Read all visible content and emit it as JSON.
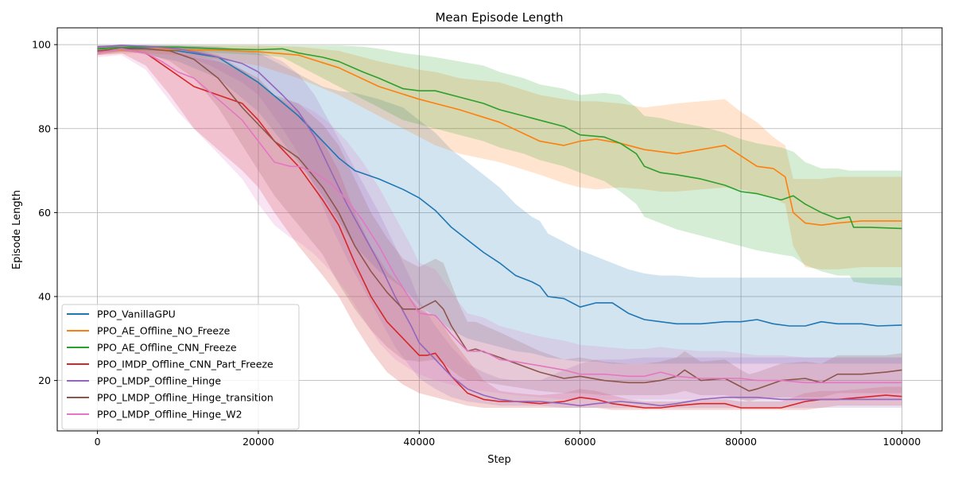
{
  "chart_data": {
    "type": "line",
    "title": "Mean Episode Length",
    "xlabel": "Step",
    "ylabel": "Episode Length",
    "xlim": [
      -5000,
      105000
    ],
    "ylim": [
      8,
      104
    ],
    "xticks": [
      0,
      20000,
      40000,
      60000,
      80000,
      100000
    ],
    "xtick_labels": [
      "0",
      "20000",
      "40000",
      "60000",
      "80000",
      "100000"
    ],
    "yticks": [
      20,
      40,
      60,
      80,
      100
    ],
    "ytick_labels": [
      "20",
      "40",
      "60",
      "80",
      "100"
    ],
    "grid": true,
    "legend_position": "lower-left",
    "series": [
      {
        "name": "PPO_VanillaGPU",
        "color": "#1f77b4",
        "x": [
          0,
          2500,
          5000,
          10000,
          15000,
          20000,
          25000,
          28000,
          30000,
          32000,
          35000,
          38000,
          40000,
          42000,
          44000,
          46000,
          48000,
          50000,
          52000,
          54000,
          55000,
          56000,
          58000,
          60000,
          62000,
          64000,
          66000,
          68000,
          70000,
          72000,
          75000,
          78000,
          80000,
          82000,
          84000,
          86000,
          88000,
          90000,
          92000,
          95000,
          97000,
          100000
        ],
        "y": [
          99,
          99.3,
          99.2,
          98.5,
          97,
          91,
          83,
          77,
          73,
          70,
          68,
          65.5,
          63.5,
          60.5,
          56.5,
          53.5,
          50.5,
          48,
          45,
          43.5,
          42.5,
          40,
          39.5,
          37.5,
          38.5,
          38.5,
          36,
          34.5,
          34,
          33.5,
          33.5,
          34,
          34,
          34.5,
          33.5,
          33,
          33,
          34,
          33.5,
          33.5,
          33,
          33.2
        ],
        "lower": [
          98,
          98.5,
          98,
          96,
          92,
          84,
          72,
          64,
          58,
          52,
          46,
          42,
          38,
          35,
          32,
          30,
          29,
          28,
          27,
          26.5,
          26,
          25.5,
          25,
          24.5,
          24.5,
          24,
          24,
          24,
          24,
          24,
          24,
          24,
          24,
          24,
          24,
          24,
          24,
          24,
          24,
          24,
          24,
          24
        ],
        "upper": [
          99.8,
          99.8,
          99.8,
          99.8,
          99.5,
          98,
          93,
          90,
          89,
          88.5,
          87,
          85,
          82,
          79,
          75,
          72,
          69,
          66,
          62,
          59,
          58,
          55,
          53,
          51,
          49.5,
          48,
          46.5,
          45.5,
          45,
          45,
          44.5,
          44.5,
          44.5,
          44.5,
          44.5,
          44.5,
          44.5,
          44.5,
          44.5,
          44.5,
          44.5,
          44.5
        ]
      },
      {
        "name": "PPO_AE_Offline_NO_Freeze",
        "color": "#ff7f0e",
        "x": [
          0,
          5000,
          10000,
          15000,
          20000,
          25000,
          30000,
          35000,
          40000,
          42000,
          45000,
          50000,
          55000,
          58000,
          60000,
          62000,
          65000,
          68000,
          70000,
          72000,
          75000,
          78000,
          80000,
          82000,
          84000,
          85500,
          86500,
          88000,
          90000,
          92000,
          95000,
          97000,
          100000
        ],
        "y": [
          98.5,
          99,
          98.8,
          98.7,
          98.3,
          97.5,
          94.5,
          90,
          87,
          86,
          84.5,
          81.5,
          77,
          76,
          77,
          77.5,
          76.5,
          75,
          74.5,
          74,
          75,
          76,
          73.5,
          71,
          70.5,
          68.5,
          60,
          57.5,
          57,
          57.5,
          58,
          58,
          58
        ],
        "lower": [
          97.5,
          98,
          97.5,
          96.5,
          95,
          92,
          88,
          83,
          78,
          76,
          74,
          72,
          69,
          67,
          66,
          65.5,
          66,
          65.5,
          65,
          65,
          65.5,
          66,
          65.5,
          64.5,
          63.5,
          62,
          52,
          47,
          46.5,
          46.5,
          47,
          47,
          47
        ],
        "upper": [
          99.5,
          99.8,
          99.8,
          99.8,
          99.8,
          99.5,
          98.5,
          96,
          94,
          93.5,
          92,
          91,
          88,
          87,
          86.5,
          86.5,
          86,
          85,
          85.5,
          86,
          86.5,
          87,
          84,
          81.5,
          78,
          76,
          68,
          68,
          68,
          68.5,
          68.5,
          68.5,
          68.5
        ]
      },
      {
        "name": "PPO_AE_Offline_CNN_Freeze",
        "color": "#2ca02c",
        "x": [
          0,
          5000,
          10000,
          15000,
          20000,
          23000,
          25000,
          28000,
          30000,
          33000,
          35000,
          38000,
          40000,
          42000,
          45000,
          48000,
          50000,
          53000,
          55000,
          58000,
          60000,
          63000,
          65000,
          67000,
          68000,
          70000,
          72000,
          75000,
          78000,
          80000,
          82000,
          85000,
          86500,
          88000,
          90000,
          92000,
          93500,
          94000,
          96000,
          100000
        ],
        "y": [
          99,
          99.5,
          99.4,
          99,
          98.8,
          99,
          98,
          97,
          96,
          93.5,
          92,
          89.5,
          89,
          89,
          87.5,
          86,
          84.5,
          83,
          82,
          80.5,
          78.5,
          78,
          76.5,
          74,
          71,
          69.5,
          69,
          68,
          66.5,
          65,
          64.5,
          63,
          64,
          62,
          60,
          58.5,
          59,
          56.5,
          56.5,
          56.2
        ],
        "lower": [
          98,
          98.5,
          98.5,
          98,
          97.5,
          97,
          95,
          92,
          90,
          87,
          85,
          82,
          81,
          80,
          78.5,
          77,
          75.5,
          74,
          72.5,
          71,
          69.5,
          67.5,
          65,
          62,
          59,
          57.5,
          56,
          54.5,
          53,
          52,
          51,
          50,
          49.5,
          47.5,
          46,
          45,
          45,
          43.5,
          43,
          42.5
        ],
        "upper": [
          99.8,
          99.8,
          99.8,
          99.8,
          99.8,
          99.8,
          99.8,
          99.8,
          99.8,
          99.5,
          99,
          98,
          97.5,
          97,
          96,
          95,
          93.5,
          92,
          90.5,
          89.5,
          88,
          88.5,
          88,
          85,
          83,
          82.5,
          81.5,
          80.5,
          79,
          77.5,
          76.5,
          75.5,
          74.5,
          72,
          70.5,
          70.5,
          70,
          70,
          70,
          70
        ]
      },
      {
        "name": "PPO_IMDP_Offline_CNN_Part_Freeze",
        "color": "#d62728",
        "x": [
          0,
          3000,
          6000,
          9000,
          12000,
          15000,
          18000,
          20000,
          22000,
          25000,
          28000,
          30000,
          32000,
          34000,
          36000,
          38000,
          40000,
          41000,
          42000,
          43000,
          44000,
          46000,
          48000,
          50000,
          52000,
          55000,
          58000,
          60000,
          62000,
          64000,
          66000,
          68000,
          70000,
          72000,
          75000,
          78000,
          80000,
          82000,
          85000,
          88000,
          90000,
          92000,
          95000,
          98000,
          100000
        ],
        "y": [
          98.5,
          99,
          98,
          94,
          90,
          88,
          86,
          82,
          77,
          71,
          63,
          57,
          48,
          40,
          34,
          30,
          26,
          26,
          26.5,
          24,
          21,
          17,
          15.5,
          15,
          15,
          14.5,
          15,
          16,
          15.5,
          14.5,
          14,
          13.5,
          13.5,
          14,
          14.5,
          14.5,
          13.5,
          13.5,
          13.5,
          15,
          15.5,
          15.5,
          16,
          16.5,
          16.2
        ],
        "lower": [
          97.5,
          98,
          95,
          88,
          80,
          75,
          70,
          66,
          60,
          52,
          45,
          40,
          33,
          27,
          22,
          19,
          17,
          16.5,
          16,
          15.5,
          15,
          14,
          13.5,
          13.5,
          13.5,
          13.5,
          13.5,
          13.5,
          13.5,
          13,
          13,
          13,
          13,
          13,
          13,
          13,
          13,
          13,
          13,
          13,
          13.5,
          14,
          14,
          14,
          14
        ],
        "upper": [
          99.5,
          99.8,
          99.5,
          98.5,
          97,
          96,
          94,
          92,
          88,
          84,
          77,
          70,
          60,
          52,
          46,
          42,
          37,
          36,
          35,
          33,
          30,
          25,
          20,
          17.5,
          17,
          16.5,
          17,
          18,
          17.5,
          16.5,
          15.5,
          15,
          15,
          15,
          15.5,
          15.5,
          15,
          15,
          15,
          17,
          17.5,
          17.5,
          18,
          18.5,
          18.5
        ]
      },
      {
        "name": "PPO_LMDP_Offline_Hinge",
        "color": "#9467bd",
        "x": [
          0,
          3000,
          6000,
          10000,
          14000,
          18000,
          20000,
          23000,
          25000,
          27000,
          29000,
          31000,
          33000,
          35000,
          37000,
          39000,
          40000,
          42000,
          44000,
          46000,
          48000,
          50000,
          52000,
          55000,
          58000,
          60000,
          62000,
          65000,
          68000,
          70000,
          72000,
          75000,
          78000,
          80000,
          82000,
          85000,
          88000,
          90000,
          93000,
          96000,
          100000
        ],
        "y": [
          99.5,
          99.8,
          99.6,
          99,
          97.5,
          95.5,
          93.5,
          88,
          84,
          78,
          70,
          62,
          55,
          48,
          40,
          33,
          29,
          25,
          21,
          18,
          16.5,
          15.5,
          15,
          15,
          14.5,
          14,
          14.5,
          15,
          14.5,
          14,
          14.5,
          15.5,
          16,
          16,
          16,
          15.5,
          15.5,
          15.5,
          15.5,
          15.5,
          15.5
        ],
        "lower": [
          99,
          99.5,
          99,
          98,
          95,
          91,
          88,
          80,
          74,
          66,
          57,
          49,
          42,
          35,
          28,
          23,
          20.5,
          18,
          16,
          15,
          14.5,
          14,
          14,
          14,
          13.5,
          13.5,
          13.5,
          13.5,
          13.5,
          13.5,
          13.5,
          13.5,
          13.5,
          13.5,
          13.5,
          13.5,
          13.5,
          13.5,
          13.5,
          13.5,
          13.5
        ],
        "upper": [
          99.8,
          99.9,
          99.9,
          99.8,
          99.5,
          99,
          98.5,
          96,
          93,
          88,
          81,
          74,
          67,
          60,
          52,
          44,
          39,
          33,
          28,
          24,
          22,
          20.5,
          20,
          20,
          22.5,
          24,
          25,
          25,
          25.5,
          25.5,
          25.5,
          25.5,
          25.5,
          25.5,
          25.5,
          25.5,
          25.5,
          25.5,
          25.5,
          25.5,
          25.5
        ]
      },
      {
        "name": "PPO_LMDP_Offline_Hinge_transition",
        "color": "#8c564b",
        "x": [
          0,
          3000,
          6000,
          9000,
          12000,
          15000,
          18000,
          20000,
          22000,
          25000,
          28000,
          30000,
          32000,
          34000,
          36000,
          38000,
          40000,
          42000,
          43000,
          44000,
          45000,
          46000,
          47000,
          50000,
          55000,
          58000,
          60000,
          63000,
          66000,
          68000,
          70000,
          72000,
          73000,
          75000,
          78000,
          80000,
          81000,
          82000,
          85000,
          88000,
          90000,
          92000,
          95000,
          98000,
          100000
        ],
        "y": [
          98.5,
          99,
          99,
          98.5,
          96.5,
          92,
          85,
          81,
          77,
          73,
          66,
          60,
          52,
          46,
          41,
          37,
          37,
          39,
          37,
          33,
          30,
          27,
          27.5,
          25.5,
          22,
          20.5,
          21,
          20,
          19.5,
          19.5,
          20,
          21,
          22.5,
          20,
          20.5,
          18.5,
          17.5,
          18,
          20,
          20.5,
          19.5,
          21.5,
          21.5,
          22,
          22.5
        ],
        "lower": [
          97.5,
          98.5,
          98,
          96,
          92,
          85,
          76,
          70,
          64,
          57,
          50,
          43,
          37,
          32,
          28,
          25,
          24.5,
          25,
          24,
          22.5,
          21,
          20,
          20,
          19,
          17.5,
          17,
          17,
          16.5,
          16.5,
          16.5,
          16.5,
          17,
          17.5,
          16.5,
          16.5,
          15.5,
          15,
          15.5,
          16,
          16,
          16,
          17,
          17,
          17,
          17
        ],
        "upper": [
          99.5,
          99.8,
          99.8,
          99.5,
          99,
          97.5,
          94,
          91,
          88,
          86,
          81,
          76,
          68,
          60,
          54,
          49,
          47,
          49,
          48,
          43,
          38,
          34,
          34,
          31.5,
          27,
          25,
          25.5,
          24.5,
          24,
          24,
          24.5,
          25.5,
          27,
          24.5,
          25,
          22.5,
          21.5,
          22,
          24,
          24.5,
          24,
          26,
          26,
          26,
          26.5
        ]
      },
      {
        "name": "PPO_LMDP_Offline_Hinge_W2",
        "color": "#e377c2",
        "x": [
          0,
          3000,
          6000,
          8000,
          10000,
          12000,
          15000,
          18000,
          20000,
          22000,
          24000,
          25000,
          27000,
          29000,
          31000,
          33000,
          35000,
          37000,
          39000,
          40000,
          42000,
          44000,
          46000,
          48000,
          50000,
          52000,
          55000,
          58000,
          60000,
          63000,
          66000,
          68000,
          70000,
          72000,
          75000,
          78000,
          80000,
          82000,
          85000,
          88000,
          90000,
          93000,
          96000,
          100000
        ],
        "y": [
          98,
          99,
          98,
          96,
          93.5,
          92,
          87,
          82,
          77,
          72,
          71,
          71,
          69.5,
          67,
          63,
          58,
          52,
          45,
          39,
          36,
          35.5,
          31,
          27,
          27,
          25,
          24.5,
          23.5,
          22.5,
          21.5,
          21.5,
          21,
          21,
          22,
          21,
          20.5,
          20.5,
          20.5,
          20,
          20,
          19.5,
          19.5,
          19.5,
          19.5,
          19.5
        ],
        "lower": [
          97,
          97.5,
          94,
          89,
          84,
          80,
          74,
          68,
          62,
          57,
          54,
          53,
          50,
          46,
          41,
          35,
          29,
          25,
          22.5,
          21.5,
          20,
          19,
          18,
          17.5,
          17,
          16.5,
          16,
          15.5,
          15.5,
          15.5,
          15.5,
          15.5,
          15.5,
          15.5,
          15.5,
          15.5,
          15.5,
          15.5,
          15.5,
          15.5,
          15.5,
          15.5,
          15.5,
          15.5
        ],
        "upper": [
          99,
          99.8,
          99.5,
          99,
          98.5,
          98,
          96,
          93,
          90,
          87,
          86.5,
          86,
          84,
          81,
          77,
          72,
          66,
          59,
          52,
          48,
          46.5,
          41,
          36,
          35,
          33,
          32,
          30.5,
          29.5,
          28.5,
          28,
          27.5,
          27.5,
          28,
          27.5,
          27,
          27,
          26.5,
          26,
          26,
          25.5,
          25.5,
          25.5,
          25.5,
          25.5
        ]
      }
    ]
  }
}
